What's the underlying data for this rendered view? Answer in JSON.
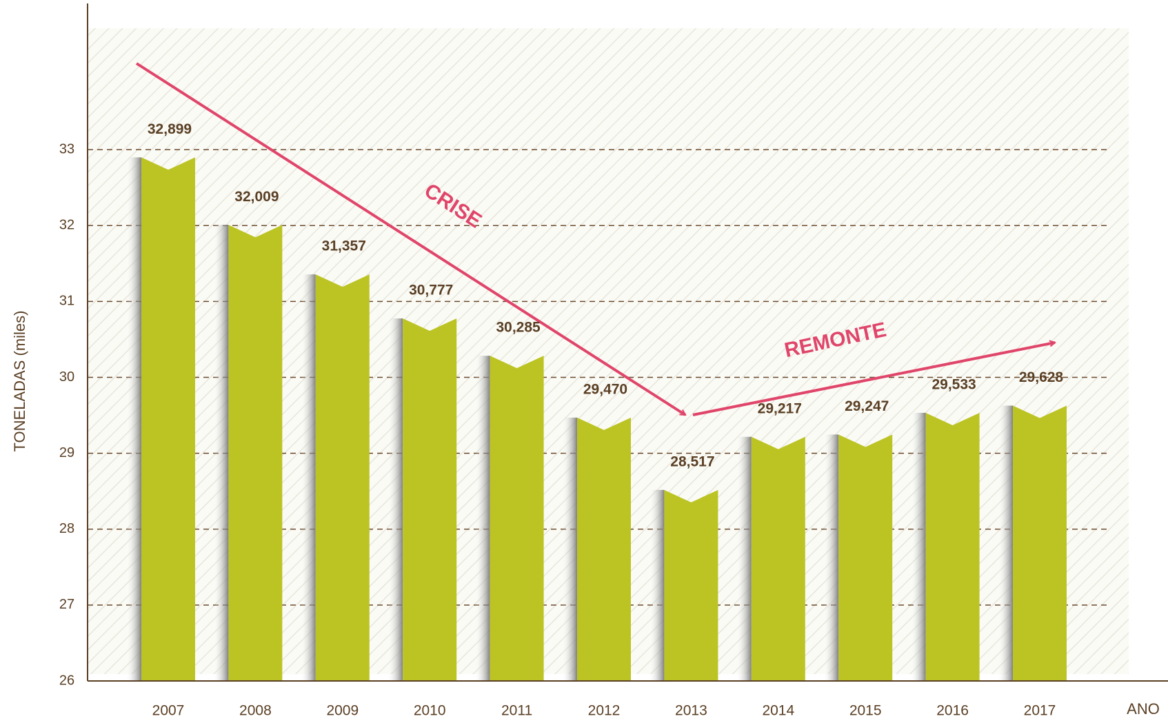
{
  "chart_data": {
    "type": "bar",
    "categories": [
      "2007",
      "2008",
      "2009",
      "2010",
      "2011",
      "2012",
      "2013",
      "2014",
      "2015",
      "2016",
      "2017"
    ],
    "values": [
      32.899,
      32.009,
      31.357,
      30.777,
      30.285,
      29.47,
      28.517,
      29.217,
      29.247,
      29.533,
      29.628
    ],
    "value_labels": [
      "32,899",
      "32,009",
      "31,357",
      "30,777",
      "30,285",
      "29,470",
      "28,517",
      "29,217",
      "29,247",
      "29,533",
      "29,628"
    ],
    "color": "#bcc424",
    "ylim": [
      26,
      34.6
    ],
    "yticks": [
      26,
      27,
      28,
      29,
      30,
      31,
      32,
      33
    ],
    "grid": true,
    "x_label": "ANO",
    "y_label": "TONELADAS (miles)",
    "annotations": [
      "CRISE",
      "REMONTE"
    ]
  }
}
